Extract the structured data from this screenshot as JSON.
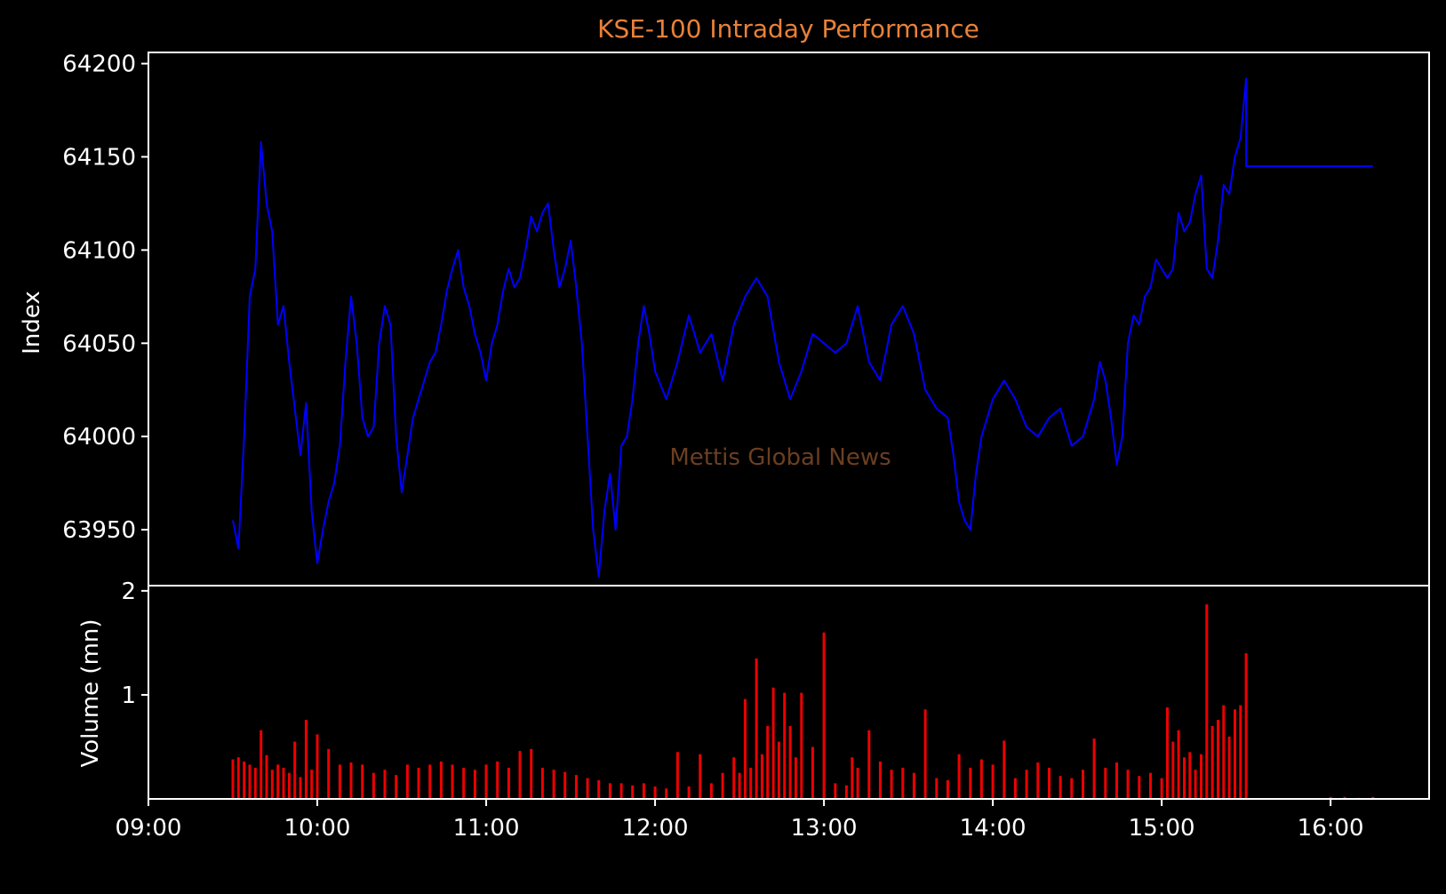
{
  "chart_data": {
    "type": "line",
    "title": "KSE-100 Intraday Performance",
    "watermark": "Mettis Global News",
    "colors": {
      "background": "#000000",
      "axes": "#ffffff",
      "title": "#e8813a",
      "watermark": "#6b3f22",
      "index_line": "#0000ff",
      "volume_bars": "#ee0000"
    },
    "x_axis": {
      "range": [
        "09:00",
        "16:35"
      ],
      "tick_labels": [
        "09:00",
        "10:00",
        "11:00",
        "12:00",
        "13:00",
        "14:00",
        "15:00",
        "16:00"
      ]
    },
    "index_panel": {
      "ylabel": "Index",
      "ylim": [
        63920,
        64206
      ],
      "tick_labels": [
        "63950",
        "64000",
        "64050",
        "64100",
        "64150",
        "64200"
      ],
      "series": [
        {
          "type": "line",
          "x": [
            "09:30",
            "09:32",
            "09:34",
            "09:36",
            "09:38",
            "09:40",
            "09:42",
            "09:44",
            "09:46",
            "09:48",
            "09:50",
            "09:52",
            "09:54",
            "09:56",
            "09:58",
            "10:00",
            "10:02",
            "10:04",
            "10:06",
            "10:08",
            "10:10",
            "10:12",
            "10:14",
            "10:16",
            "10:18",
            "10:20",
            "10:22",
            "10:24",
            "10:26",
            "10:28",
            "10:30",
            "10:32",
            "10:34",
            "10:36",
            "10:38",
            "10:40",
            "10:42",
            "10:44",
            "10:46",
            "10:48",
            "10:50",
            "10:52",
            "10:54",
            "10:56",
            "10:58",
            "11:00",
            "11:02",
            "11:04",
            "11:06",
            "11:08",
            "11:10",
            "11:12",
            "11:14",
            "11:16",
            "11:18",
            "11:20",
            "11:22",
            "11:24",
            "11:26",
            "11:28",
            "11:30",
            "11:32",
            "11:34",
            "11:36",
            "11:38",
            "11:40",
            "11:42",
            "11:44",
            "11:46",
            "11:48",
            "11:50",
            "11:52",
            "11:54",
            "11:56",
            "11:58",
            "12:00",
            "12:04",
            "12:08",
            "12:12",
            "12:16",
            "12:20",
            "12:24",
            "12:28",
            "12:32",
            "12:36",
            "12:40",
            "12:44",
            "12:48",
            "12:52",
            "12:56",
            "13:00",
            "13:04",
            "13:08",
            "13:12",
            "13:16",
            "13:20",
            "13:24",
            "13:28",
            "13:32",
            "13:36",
            "13:40",
            "13:44",
            "13:46",
            "13:48",
            "13:50",
            "13:52",
            "13:54",
            "13:56",
            "13:58",
            "14:00",
            "14:04",
            "14:08",
            "14:12",
            "14:16",
            "14:20",
            "14:24",
            "14:28",
            "14:32",
            "14:36",
            "14:38",
            "14:40",
            "14:42",
            "14:44",
            "14:46",
            "14:48",
            "14:50",
            "14:52",
            "14:54",
            "14:56",
            "14:58",
            "15:00",
            "15:02",
            "15:04",
            "15:06",
            "15:08",
            "15:10",
            "15:12",
            "15:14",
            "15:16",
            "15:18",
            "15:20",
            "15:22",
            "15:24",
            "15:26",
            "15:28",
            "15:30",
            "15:30",
            "15:45",
            "16:00",
            "16:15"
          ],
          "values": [
            63955,
            63940,
            64000,
            64075,
            64090,
            64158,
            64125,
            64110,
            64060,
            64070,
            64040,
            64015,
            63990,
            64018,
            63960,
            63932,
            63950,
            63965,
            63975,
            63995,
            64040,
            64075,
            64050,
            64010,
            64000,
            64005,
            64050,
            64070,
            64060,
            64000,
            63970,
            63990,
            64010,
            64020,
            64030,
            64040,
            64045,
            64060,
            64078,
            64090,
            64100,
            64080,
            64070,
            64055,
            64045,
            64030,
            64050,
            64060,
            64078,
            64090,
            64080,
            64085,
            64100,
            64118,
            64110,
            64120,
            64125,
            64100,
            64080,
            64090,
            64105,
            64080,
            64050,
            64000,
            63950,
            63925,
            63960,
            63980,
            63950,
            63995,
            64000,
            64020,
            64050,
            64070,
            64055,
            64035,
            64020,
            64040,
            64065,
            64045,
            64055,
            64030,
            64060,
            64075,
            64085,
            64075,
            64040,
            64020,
            64035,
            64055,
            64050,
            64045,
            64050,
            64070,
            64040,
            64030,
            64060,
            64070,
            64055,
            64025,
            64015,
            64010,
            63990,
            63965,
            63955,
            63950,
            63980,
            64000,
            64010,
            64020,
            64030,
            64020,
            64005,
            64000,
            64010,
            64015,
            63995,
            64000,
            64020,
            64040,
            64030,
            64010,
            63985,
            64000,
            64050,
            64065,
            64060,
            64075,
            64080,
            64095,
            64090,
            64085,
            64090,
            64120,
            64110,
            64115,
            64130,
            64140,
            64090,
            64085,
            64105,
            64135,
            64130,
            64150,
            64160,
            64192,
            64145,
            64145,
            64145,
            64145
          ]
        }
      ]
    },
    "volume_panel": {
      "ylabel": "Volume (mn)",
      "ylim": [
        0,
        2.05
      ],
      "tick_labels": [
        "1",
        "2"
      ],
      "series": [
        {
          "type": "bar",
          "x": [
            "09:30",
            "09:32",
            "09:34",
            "09:36",
            "09:38",
            "09:40",
            "09:42",
            "09:44",
            "09:46",
            "09:48",
            "09:50",
            "09:52",
            "09:54",
            "09:56",
            "09:58",
            "10:00",
            "10:04",
            "10:08",
            "10:12",
            "10:16",
            "10:20",
            "10:24",
            "10:28",
            "10:32",
            "10:36",
            "10:40",
            "10:44",
            "10:48",
            "10:52",
            "10:56",
            "11:00",
            "11:04",
            "11:08",
            "11:12",
            "11:16",
            "11:20",
            "11:24",
            "11:28",
            "11:32",
            "11:36",
            "11:40",
            "11:44",
            "11:48",
            "11:52",
            "11:56",
            "12:00",
            "12:04",
            "12:08",
            "12:12",
            "12:16",
            "12:20",
            "12:24",
            "12:28",
            "12:30",
            "12:32",
            "12:34",
            "12:36",
            "12:38",
            "12:40",
            "12:42",
            "12:44",
            "12:46",
            "12:48",
            "12:50",
            "12:52",
            "12:56",
            "13:00",
            "13:04",
            "13:08",
            "13:10",
            "13:12",
            "13:16",
            "13:20",
            "13:24",
            "13:28",
            "13:32",
            "13:36",
            "13:40",
            "13:44",
            "13:48",
            "13:52",
            "13:56",
            "14:00",
            "14:04",
            "14:08",
            "14:12",
            "14:16",
            "14:20",
            "14:24",
            "14:28",
            "14:32",
            "14:36",
            "14:40",
            "14:44",
            "14:48",
            "14:52",
            "14:56",
            "15:00",
            "15:02",
            "15:04",
            "15:06",
            "15:08",
            "15:10",
            "15:12",
            "15:14",
            "15:16",
            "15:18",
            "15:20",
            "15:22",
            "15:24",
            "15:26",
            "15:28",
            "15:30",
            "16:00",
            "16:05",
            "16:10",
            "16:15"
          ],
          "values": [
            0.38,
            0.4,
            0.36,
            0.33,
            0.3,
            0.66,
            0.42,
            0.28,
            0.33,
            0.3,
            0.25,
            0.55,
            0.21,
            0.76,
            0.28,
            0.62,
            0.48,
            0.33,
            0.35,
            0.33,
            0.25,
            0.28,
            0.23,
            0.33,
            0.3,
            0.33,
            0.36,
            0.33,
            0.3,
            0.28,
            0.33,
            0.36,
            0.3,
            0.46,
            0.48,
            0.3,
            0.28,
            0.26,
            0.23,
            0.2,
            0.18,
            0.15,
            0.15,
            0.13,
            0.15,
            0.12,
            0.1,
            0.45,
            0.12,
            0.43,
            0.15,
            0.25,
            0.4,
            0.25,
            0.96,
            0.3,
            1.35,
            0.43,
            0.7,
            1.07,
            0.55,
            1.02,
            0.7,
            0.4,
            1.02,
            0.5,
            1.6,
            0.15,
            0.13,
            0.4,
            0.3,
            0.66,
            0.36,
            0.28,
            0.3,
            0.25,
            0.86,
            0.2,
            0.18,
            0.43,
            0.3,
            0.38,
            0.33,
            0.56,
            0.2,
            0.28,
            0.35,
            0.3,
            0.22,
            0.2,
            0.28,
            0.58,
            0.3,
            0.35,
            0.28,
            0.22,
            0.25,
            0.2,
            0.88,
            0.55,
            0.66,
            0.4,
            0.45,
            0.28,
            0.43,
            1.87,
            0.7,
            0.76,
            0.9,
            0.6,
            0.86,
            0.9,
            1.4,
            0.02,
            0.02,
            0.01,
            0.02
          ]
        }
      ]
    }
  }
}
